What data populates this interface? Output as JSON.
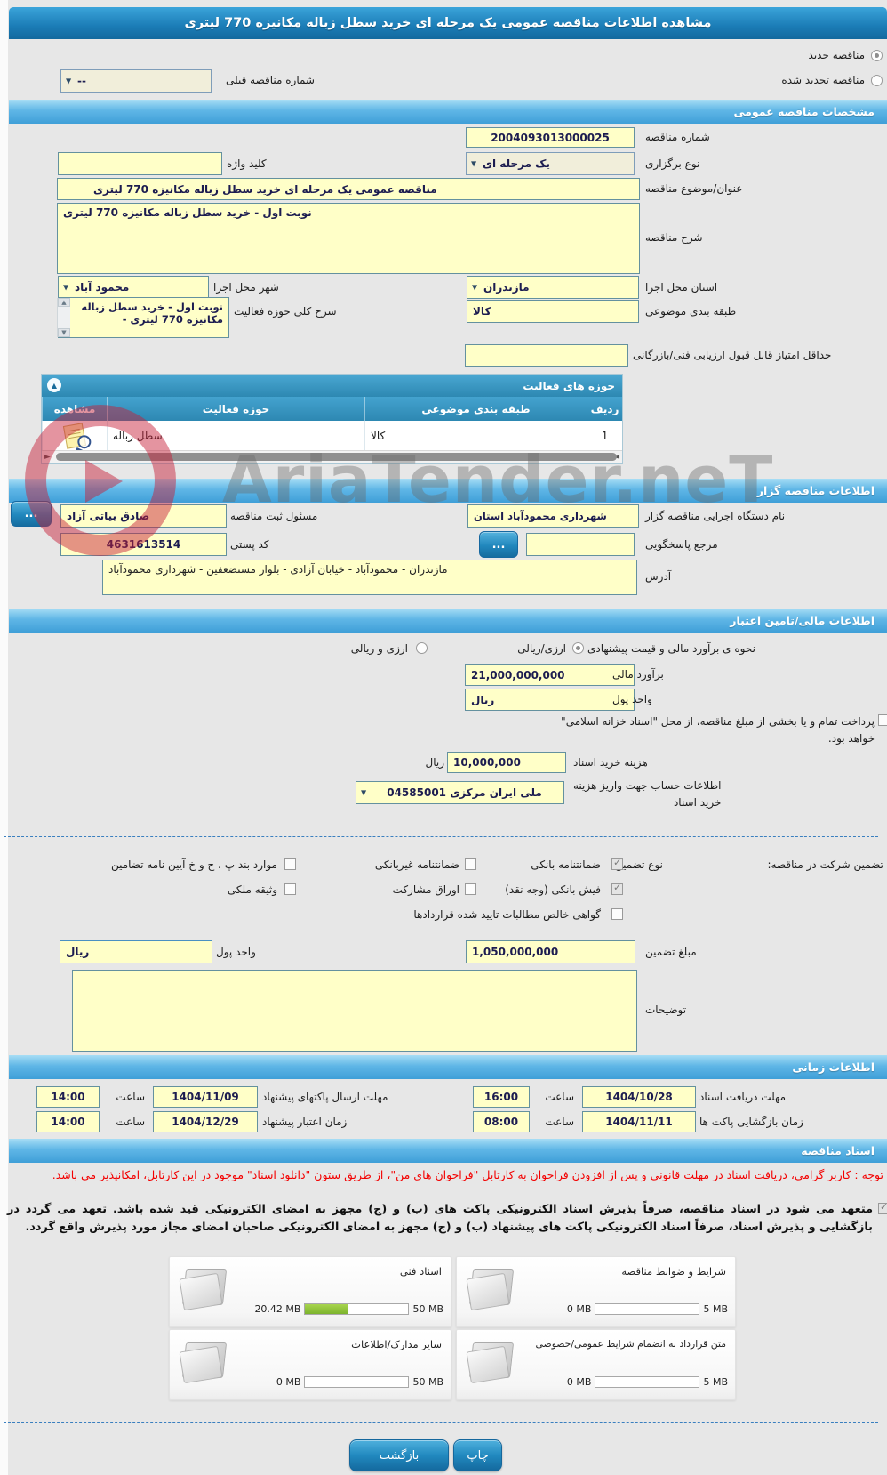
{
  "window": {
    "title": "مشاهده اطلاعات مناقصه عمومی یک مرحله ای خرید سطل زباله مکانیزه 770 لیتری"
  },
  "colors": {
    "accent_blue": "#2f95c8",
    "input_yellow": "#ffffc8",
    "progress_green": "#8dc63f",
    "warning_red": "#f30000"
  },
  "top": {
    "new_tender": {
      "label": "مناقصه جدید",
      "selected": true
    },
    "renewed_tender": {
      "label": "مناقصه تجدید شده",
      "selected": false
    },
    "previous_tender": {
      "label": "شماره مناقصه قبلی",
      "value": "--"
    }
  },
  "general": {
    "header": "مشخصات مناقصه عمومی",
    "tender_number": {
      "label": "شماره مناقصه",
      "value": "2004093013000025"
    },
    "holding_type": {
      "label": "نوع برگزاری",
      "value": "یک مرحله ای"
    },
    "keyword": {
      "label": "کلید واژه",
      "value": ""
    },
    "subject": {
      "label": "عنوان/موضوع مناقصه",
      "value": "مناقصه عمومی یک مرحله ای خرید سطل زباله مکانیزه 770 لیتری"
    },
    "description": {
      "label": "شرح مناقصه",
      "value": "نوبت اول - خرید سطل زباله مکانیزه 770 لیتری"
    },
    "province": {
      "label": "استان محل اجرا",
      "value": "مازندران"
    },
    "city": {
      "label": "شهر محل اجرا",
      "value": "محمود آباد"
    },
    "category": {
      "label": "طبقه بندی موضوعی",
      "value": "کالا"
    },
    "activity_scope": {
      "label": "شرح کلی حوزه فعالیت",
      "value": "نوبت اول - خرید سطل زباله مکانیزه 770 لیتری -"
    },
    "min_score": {
      "label": "حداقل امتیاز قابل قبول ارزیابی فنی/بازرگانی",
      "value": ""
    }
  },
  "activity_table": {
    "title": "حوزه های فعالیت",
    "columns": [
      "ردیف",
      "طبقه بندی موضوعی",
      "حوزه فعالیت",
      "مشاهده"
    ],
    "rows": [
      {
        "index": "1",
        "category": "کالا",
        "activity": "سطل زباله"
      }
    ]
  },
  "agency": {
    "header": "اطلاعات مناقصه گزار",
    "name": {
      "label": "نام دستگاه اجرایی مناقصه گزار",
      "value": "شهرداری محمودآباد استان"
    },
    "registrar": {
      "label": "مسئول ثبت مناقصه",
      "value": "صادق بیاتی آزاد"
    },
    "reference": {
      "label": "مرجع پاسخگویی",
      "value": ""
    },
    "postal_code": {
      "label": "کد پستی",
      "value": "4631613514"
    },
    "address": {
      "label": "آدرس",
      "value": "مازندران - محمودآباد - خیابان آزادی - بلوار مستضعفین - شهرداری محمودآباد"
    },
    "more_button": "..."
  },
  "financial": {
    "header": "اطلاعات مالی/تامین اعتبار",
    "method": {
      "label": "نحوه ی برآورد مالی و قیمت پیشنهادی",
      "options": [
        {
          "label": "ارزی/ریالی",
          "selected": true
        },
        {
          "label": "ارزی و ریالی",
          "selected": false
        }
      ]
    },
    "estimate": {
      "label": "برآورد مالی",
      "value": "21,000,000,000"
    },
    "currency": {
      "label": "واحد پول",
      "value": "ریال"
    },
    "treasury_note": {
      "checked": false,
      "text": "پرداخت تمام و یا بخشی از مبلغ مناقصه، از محل \"اسناد خزانه اسلامی\"\nخواهد بود."
    },
    "doc_fee": {
      "label": "هزینه خرید اسناد",
      "value": "10,000,000",
      "unit": "ریال"
    },
    "account": {
      "label": "اطلاعات حساب جهت واریز هزینه\nخرید اسناد",
      "value": "ملی ایران مرکزی 04585001"
    },
    "guarantee": {
      "label": "تضمین شرکت در مناقصه:",
      "type_label": "نوع تضمین",
      "options": [
        {
          "label": "ضمانتنامه بانکی",
          "checked": true
        },
        {
          "label": "ضمانتنامه غیربانکی",
          "checked": false
        },
        {
          "label": "موارد بند پ ، ح و خ آیین نامه تضامین",
          "checked": false
        },
        {
          "label": "فیش بانکی (وجه نقد)",
          "checked": true
        },
        {
          "label": "اوراق مشارکت",
          "checked": false
        },
        {
          "label": "وثیقه ملکی",
          "checked": false
        },
        {
          "label": "گواهی خالص مطالبات تایید شده قراردادها",
          "checked": false
        }
      ],
      "amount": {
        "label": "مبلغ تضمین",
        "value": "1,050,000,000"
      },
      "currency": {
        "label": "واحد پول",
        "value": "ریال"
      }
    },
    "notes": {
      "label": "توضیحات",
      "value": ""
    }
  },
  "timing": {
    "header": "اطلاعات زمانی",
    "rows": [
      {
        "label": "مهلت دریافت اسناد",
        "date": "1404/10/28",
        "time_label": "ساعت",
        "time": "16:00"
      },
      {
        "label": "مهلت ارسال پاکتهای پیشنهاد",
        "date": "1404/11/09",
        "time_label": "ساعت",
        "time": "14:00"
      },
      {
        "label": "زمان بازگشایی پاکت ها",
        "date": "1404/11/11",
        "time_label": "ساعت",
        "time": "08:00"
      },
      {
        "label": "زمان اعتبار پیشنهاد",
        "date": "1404/12/29",
        "time_label": "ساعت",
        "time": "14:00"
      }
    ]
  },
  "documents": {
    "header": "اسناد مناقصه",
    "warning": "توجه : کاربر گرامی، دریافت اسناد در مهلت قانونی و پس از افزودن فراخوان به کارتابل \"فراخوان های من\"، از طریق ستون \"دانلود اسناد\" موجود در این کارتابل، امکانپذیر می باشد.",
    "commitment": {
      "checked": true,
      "text": "متعهد می شود در اسناد مناقصه، صرفاً پذیرش اسناد الکترونیکی پاکت های (ب) و (ج) مجهز به امضای الکترونیکی قید شده باشد. تعهد می گردد در بازگشایی و پذیرش اسناد، صرفاً اسناد الکترونیکی پاکت های پیشنهاد (ب) و (ج) مجهز به امضای الکترونیکی صاحبان امضای مجاز مورد پذیرش واقع گردد."
    },
    "uploads": [
      {
        "title": "شرایط و ضوابط مناقصه",
        "used": "0 MB",
        "max": "5 MB",
        "percent": 0
      },
      {
        "title": "اسناد فنی",
        "used": "20.42 MB",
        "max": "50 MB",
        "percent": 41
      },
      {
        "title": "متن قرارداد به انضمام شرایط عمومی/خصوصی",
        "used": "0 MB",
        "max": "5 MB",
        "percent": 0
      },
      {
        "title": "سایر مدارک/اطلاعات",
        "used": "0 MB",
        "max": "50 MB",
        "percent": 0
      }
    ]
  },
  "footer": {
    "print_button": "چاپ",
    "back_button": "بازگشت"
  },
  "watermark": {
    "text": "AriaTender.neT"
  }
}
